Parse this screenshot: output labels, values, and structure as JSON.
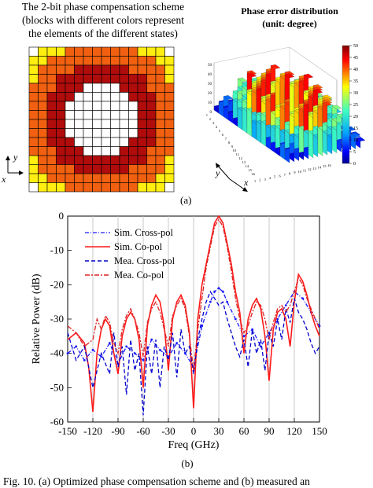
{
  "figure_top": {
    "left_title_lines": [
      "The 2-bit phase compensation scheme",
      "(blocks with different colors represent",
      "the elements of the different states)"
    ],
    "right_title_lines": [
      "Phase error distribution",
      "(unit: degree)"
    ],
    "axis_y": "y",
    "axis_x": "x",
    "grid_colors": {
      "white": "#ffffff",
      "darkred": "#b00c0c",
      "orange": "#f06010",
      "yellow": "#ffee10"
    },
    "colorbar_ticks": [
      "50",
      "45",
      "40",
      "35",
      "30",
      "25",
      "20",
      "15",
      "10",
      "5",
      "0"
    ],
    "plot3d_z_ticks": [
      "50",
      "40",
      "30",
      "20",
      "10",
      "0"
    ],
    "plot3d_row_ticks": [
      "1",
      "2",
      "3",
      "4",
      "5",
      "6",
      "7",
      "8",
      "9",
      "10",
      "11",
      "12",
      "13",
      "14",
      "15",
      "16"
    ],
    "plot3d_col_ticks": [
      "1",
      "2",
      "3",
      "4",
      "5",
      "6",
      "7",
      "8",
      "9",
      "10",
      "11",
      "12",
      "13",
      "14",
      "15",
      "16"
    ],
    "panel_label": "(a)"
  },
  "chart_data": {
    "type": "line",
    "xlabel": "Freq (GHz)",
    "ylabel": "Relative Power (dB)",
    "xlim": [
      -150,
      150
    ],
    "ylim": [
      -60,
      0
    ],
    "xticks": [
      -150,
      -120,
      -90,
      -60,
      -30,
      0,
      30,
      60,
      90,
      120,
      150
    ],
    "yticks": [
      0,
      -10,
      -20,
      -30,
      -40,
      -50,
      -60
    ],
    "grid": "vertical lines at major x ticks",
    "legend_position": "top-left",
    "series": [
      {
        "name": "Sim. Cross-pol",
        "color": "#1a1aff",
        "style": "dash-dot-marker",
        "x": [
          -150,
          -140,
          -130,
          -120,
          -110,
          -100,
          -90,
          -80,
          -70,
          -60,
          -50,
          -40,
          -30,
          -20,
          -10,
          0,
          10,
          20,
          25,
          30,
          35,
          40,
          50,
          60,
          70,
          80,
          90,
          100,
          110,
          120,
          130,
          140,
          150
        ],
        "y": [
          -40,
          -38,
          -42,
          -39,
          -41,
          -37,
          -43,
          -38,
          -40,
          -42,
          -36,
          -39,
          -41,
          -37,
          -40,
          -44,
          -32,
          -25,
          -22,
          -21,
          -22,
          -25,
          -30,
          -35,
          -33,
          -38,
          -34,
          -30,
          -26,
          -22,
          -24,
          -28,
          -32
        ]
      },
      {
        "name": "Sim. Co-pol",
        "color": "#ff1a1a",
        "style": "solid",
        "x": [
          -150,
          -140,
          -130,
          -125,
          -120,
          -115,
          -110,
          -105,
          -100,
          -95,
          -90,
          -85,
          -80,
          -75,
          -70,
          -65,
          -60,
          -55,
          -50,
          -45,
          -40,
          -35,
          -30,
          -25,
          -20,
          -15,
          -10,
          -5,
          0,
          5,
          10,
          15,
          20,
          25,
          30,
          35,
          40,
          45,
          50,
          55,
          60,
          65,
          70,
          75,
          80,
          85,
          90,
          95,
          100,
          105,
          110,
          115,
          120,
          125,
          130,
          135,
          140,
          145,
          150
        ],
        "y": [
          -36,
          -34,
          -37,
          -44,
          -57,
          -40,
          -33,
          -30,
          -32,
          -40,
          -46,
          -35,
          -30,
          -28,
          -30,
          -36,
          -50,
          -32,
          -26,
          -23,
          -25,
          -32,
          -45,
          -30,
          -25,
          -23,
          -26,
          -34,
          -56,
          -30,
          -20,
          -14,
          -8,
          -2,
          0,
          -2,
          -8,
          -14,
          -22,
          -28,
          -40,
          -30,
          -26,
          -24,
          -27,
          -35,
          -48,
          -33,
          -28,
          -27,
          -30,
          -38,
          -25,
          -17,
          -19,
          -23,
          -28,
          -32,
          -35
        ]
      },
      {
        "name": "Mea. Cross-pol",
        "color": "#0000cc",
        "style": "dashed",
        "x": [
          -150,
          -140,
          -130,
          -120,
          -110,
          -100,
          -95,
          -90,
          -85,
          -80,
          -75,
          -70,
          -65,
          -60,
          -55,
          -50,
          -45,
          -40,
          -35,
          -30,
          -25,
          -20,
          -15,
          -10,
          -5,
          0,
          5,
          10,
          15,
          20,
          25,
          30,
          35,
          40,
          45,
          50,
          55,
          60,
          65,
          70,
          75,
          80,
          85,
          90,
          95,
          100,
          105,
          110,
          115,
          120,
          125,
          130,
          135,
          140,
          145,
          150
        ],
        "y": [
          -34,
          -42,
          -38,
          -50,
          -40,
          -46,
          -34,
          -44,
          -38,
          -52,
          -36,
          -45,
          -40,
          -58,
          -38,
          -46,
          -36,
          -50,
          -38,
          -42,
          -34,
          -47,
          -33,
          -40,
          -38,
          -46,
          -36,
          -30,
          -25,
          -22,
          -24,
          -26,
          -25,
          -30,
          -34,
          -38,
          -41,
          -36,
          -44,
          -33,
          -40,
          -36,
          -45,
          -34,
          -38,
          -30,
          -36,
          -27,
          -31,
          -24,
          -28,
          -30,
          -33,
          -37,
          -40,
          -38
        ]
      },
      {
        "name": "Mea. Co-pol",
        "color": "#dd2222",
        "style": "dash-dot",
        "x": [
          -150,
          -140,
          -130,
          -120,
          -115,
          -110,
          -105,
          -100,
          -95,
          -90,
          -85,
          -80,
          -75,
          -70,
          -65,
          -60,
          -55,
          -50,
          -45,
          -40,
          -35,
          -30,
          -25,
          -20,
          -15,
          -10,
          -5,
          0,
          5,
          10,
          15,
          20,
          25,
          30,
          35,
          40,
          45,
          50,
          55,
          60,
          65,
          70,
          75,
          80,
          85,
          90,
          95,
          100,
          105,
          110,
          115,
          120,
          125,
          130,
          135,
          140,
          145,
          150
        ],
        "y": [
          -32,
          -34,
          -38,
          -36,
          -30,
          -33,
          -29,
          -31,
          -37,
          -40,
          -33,
          -29,
          -27,
          -30,
          -34,
          -41,
          -31,
          -27,
          -25,
          -28,
          -33,
          -38,
          -29,
          -26,
          -24,
          -27,
          -35,
          -45,
          -33,
          -24,
          -15,
          -9,
          -3,
          -1,
          -3,
          -9,
          -16,
          -24,
          -30,
          -34,
          -32,
          -28,
          -25,
          -26,
          -30,
          -36,
          -31,
          -27,
          -26,
          -28,
          -26,
          -22,
          -18,
          -20,
          -24,
          -27,
          -30,
          -33
        ]
      }
    ]
  },
  "panel_b_label": "(b)",
  "caption": "Fig. 10.   (a) Optimized phase compensation scheme and (b) measured an"
}
